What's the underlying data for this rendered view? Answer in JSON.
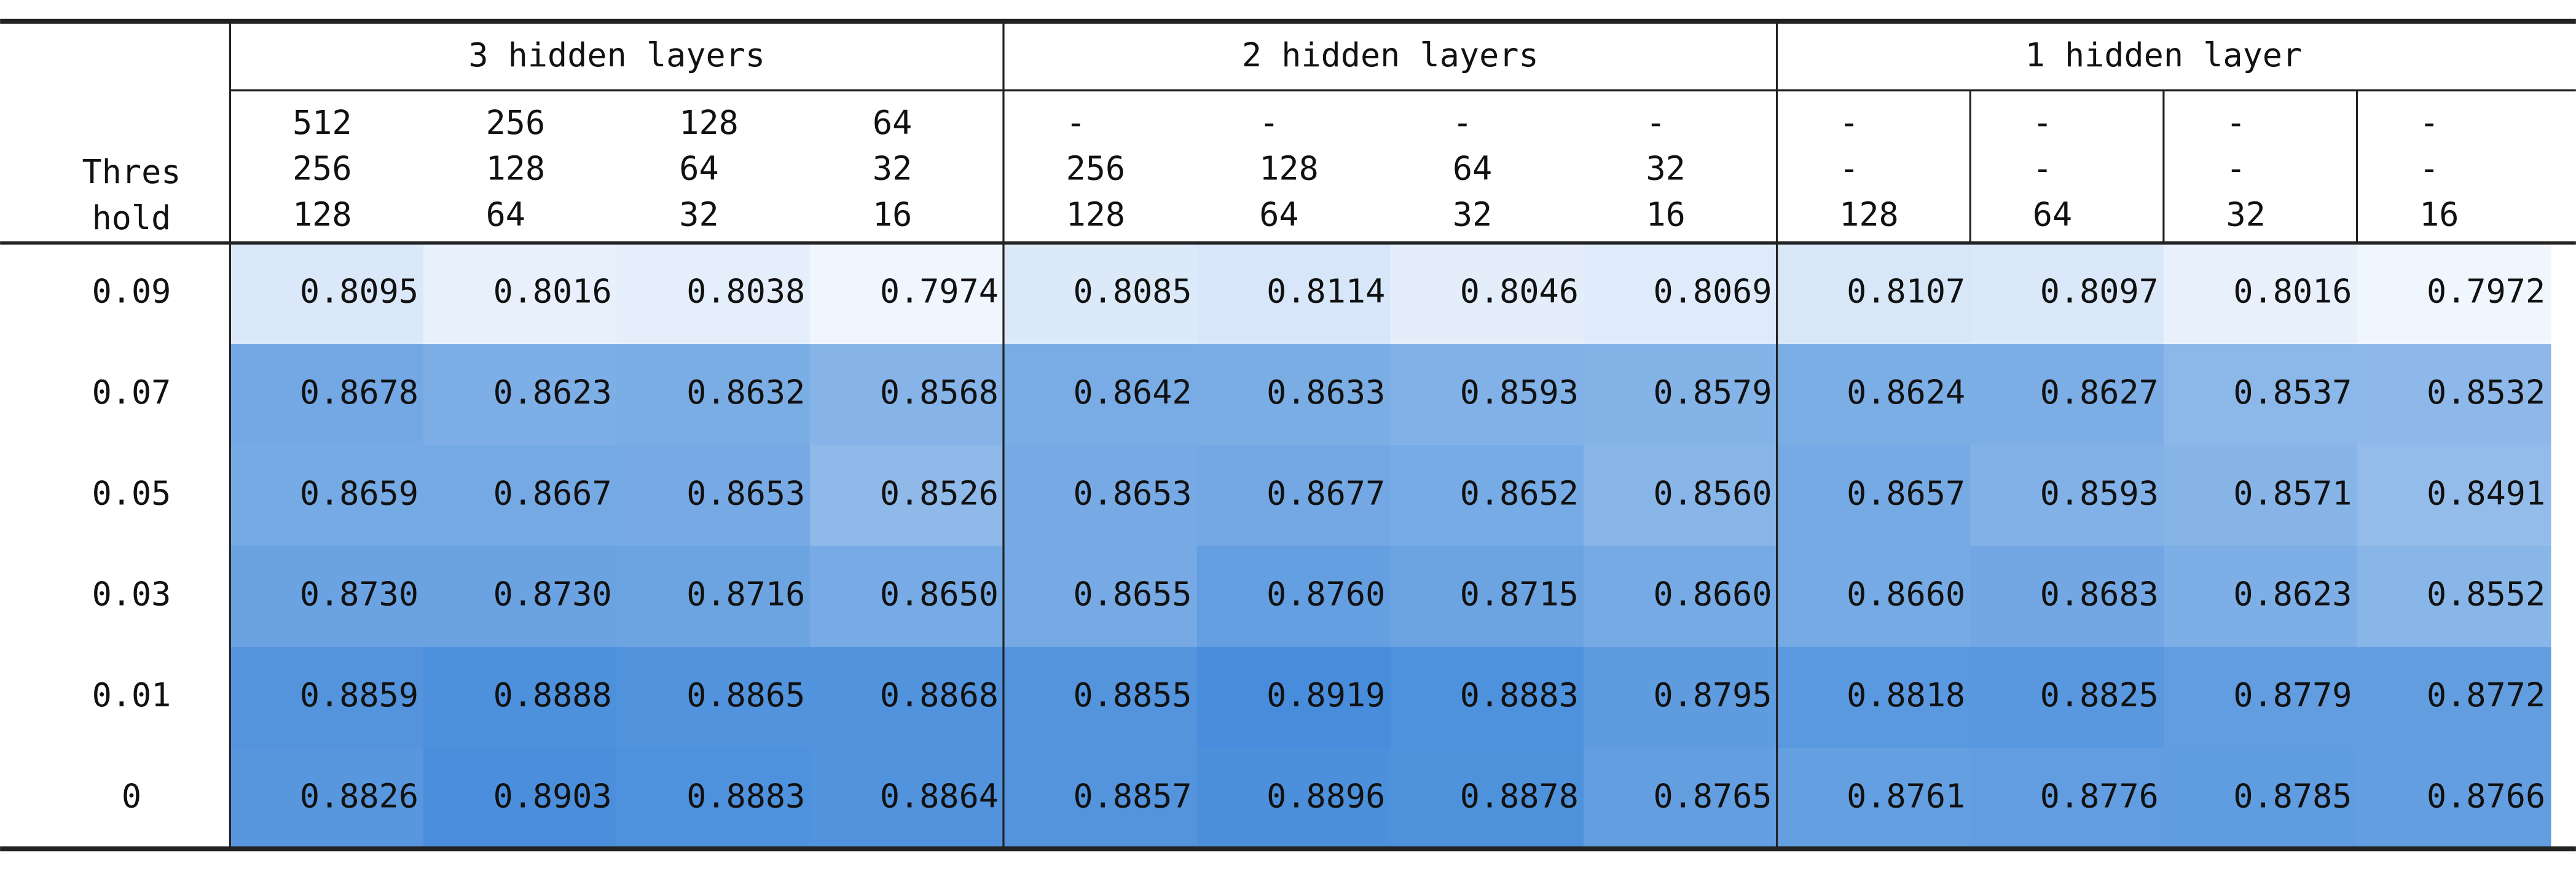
{
  "table": {
    "corner": [
      "Thres",
      "hold"
    ],
    "groups": [
      "3 hidden layers",
      "2 hidden layers",
      "1 hidden layer"
    ],
    "columns": [
      [
        "512",
        "256",
        "128"
      ],
      [
        "256",
        "128",
        "64"
      ],
      [
        "128",
        "64",
        "32"
      ],
      [
        "64",
        "32",
        "16"
      ],
      [
        "-",
        "256",
        "128"
      ],
      [
        "-",
        "128",
        "64"
      ],
      [
        "-",
        "64",
        "32"
      ],
      [
        "-",
        "32",
        "16"
      ],
      [
        "-",
        "-",
        "128"
      ],
      [
        "-",
        "-",
        "64"
      ],
      [
        "-",
        "-",
        "32"
      ],
      [
        "-",
        "-",
        "16"
      ]
    ],
    "rows": [
      {
        "label": "0.09",
        "cells": [
          "0.8095",
          "0.8016",
          "0.8038",
          "0.7974",
          "0.8085",
          "0.8114",
          "0.8046",
          "0.8069",
          "0.8107",
          "0.8097",
          "0.8016",
          "0.7972"
        ]
      },
      {
        "label": "0.07",
        "cells": [
          "0.8678",
          "0.8623",
          "0.8632",
          "0.8568",
          "0.8642",
          "0.8633",
          "0.8593",
          "0.8579",
          "0.8624",
          "0.8627",
          "0.8537",
          "0.8532"
        ]
      },
      {
        "label": "0.05",
        "cells": [
          "0.8659",
          "0.8667",
          "0.8653",
          "0.8526",
          "0.8653",
          "0.8677",
          "0.8652",
          "0.8560",
          "0.8657",
          "0.8593",
          "0.8571",
          "0.8491"
        ]
      },
      {
        "label": "0.03",
        "cells": [
          "0.8730",
          "0.8730",
          "0.8716",
          "0.8650",
          "0.8655",
          "0.8760",
          "0.8715",
          "0.8660",
          "0.8660",
          "0.8683",
          "0.8623",
          "0.8552"
        ]
      },
      {
        "label": "0.01",
        "cells": [
          "0.8859",
          "0.8888",
          "0.8865",
          "0.8868",
          "0.8855",
          "0.8919",
          "0.8883",
          "0.8795",
          "0.8818",
          "0.8825",
          "0.8779",
          "0.8772"
        ]
      },
      {
        "label": "0",
        "cells": [
          "0.8826",
          "0.8903",
          "0.8883",
          "0.8864",
          "0.8857",
          "0.8896",
          "0.8878",
          "0.8765",
          "0.8761",
          "0.8776",
          "0.8785",
          "0.8766"
        ]
      }
    ]
  }
}
